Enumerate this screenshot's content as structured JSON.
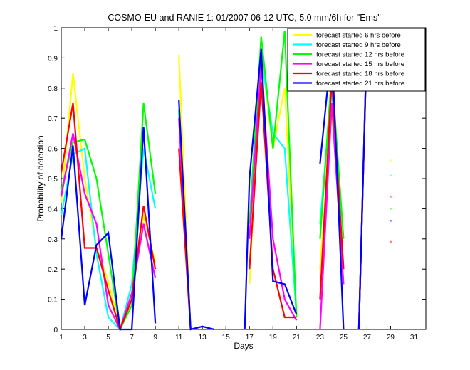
{
  "chart_data": {
    "type": "line",
    "title": "COSMO-EU and RANIE 1: 01/2007 06-12 UTC, 5.0 mm/6h for \"Ems\"",
    "xlabel": "Days",
    "ylabel": "Probability of detection",
    "xlim": [
      1,
      32
    ],
    "ylim": [
      0,
      1
    ],
    "xticks": [
      1,
      3,
      5,
      7,
      9,
      11,
      13,
      15,
      17,
      19,
      21,
      23,
      25,
      27,
      29,
      31
    ],
    "yticks": [
      0,
      0.1,
      0.2,
      0.3,
      0.4,
      0.5,
      0.6,
      0.7,
      0.8,
      0.9,
      1
    ],
    "ytick_labels": [
      "0",
      "0.1",
      "0.2",
      "0.3",
      "0.4",
      "0.5",
      "0.6",
      "0.7",
      "0.8",
      "0.9",
      "1"
    ],
    "legend_position": "top-right",
    "grid": false,
    "series": [
      {
        "name": "forecast started 6 hrs before",
        "color": "#ffff00",
        "segments": [
          [
            [
              1,
              0.42
            ],
            [
              2,
              0.85
            ],
            [
              3,
              0.5
            ],
            [
              4,
              0.27
            ],
            [
              5,
              0.16
            ],
            [
              6,
              0.0
            ],
            [
              7,
              0.1
            ],
            [
              8,
              0.38
            ],
            [
              9,
              0.22
            ]
          ],
          [
            [
              11,
              0.91
            ],
            [
              12,
              0.0
            ]
          ],
          [
            [
              17,
              0.15
            ],
            [
              18,
              0.92
            ],
            [
              19,
              0.6
            ],
            [
              20,
              0.8
            ],
            [
              21,
              0.05
            ]
          ],
          [
            [
              23,
              0.2
            ],
            [
              24,
              0.72
            ],
            [
              25,
              0.2
            ]
          ],
          [
            [
              26.3,
              0.0
            ],
            [
              27,
              1.0
            ]
          ]
        ],
        "markers": [
          [
            29,
            0.56
          ]
        ]
      },
      {
        "name": "forecast started 9 hrs before",
        "color": "#00ffff",
        "segments": [
          [
            [
              1,
              0.38
            ],
            [
              2,
              0.58
            ],
            [
              3,
              0.6
            ],
            [
              4,
              0.25
            ],
            [
              5,
              0.04
            ],
            [
              6,
              0.0
            ],
            [
              7,
              0.15
            ],
            [
              8,
              0.6
            ],
            [
              9,
              0.4
            ]
          ],
          [
            [
              11,
              0.72
            ],
            [
              12,
              0.0
            ]
          ],
          [
            [
              17,
              0.3
            ],
            [
              18,
              0.9
            ],
            [
              19,
              0.65
            ],
            [
              20,
              0.6
            ],
            [
              21,
              0.05
            ]
          ],
          [
            [
              23,
              0.35
            ],
            [
              24,
              0.8
            ],
            [
              25,
              0.2
            ]
          ],
          [
            [
              26.3,
              0.0
            ],
            [
              27,
              0.98
            ]
          ]
        ],
        "markers": [
          [
            29,
            0.51
          ]
        ]
      },
      {
        "name": "forecast started 12 hrs before",
        "color": "#00ff00",
        "segments": [
          [
            [
              1,
              0.46
            ],
            [
              2,
              0.62
            ],
            [
              3,
              0.63
            ],
            [
              4,
              0.5
            ],
            [
              5,
              0.25
            ],
            [
              6,
              0.0
            ],
            [
              7,
              0.08
            ],
            [
              8,
              0.75
            ],
            [
              9,
              0.45
            ]
          ],
          [
            [
              11,
              0.73
            ],
            [
              12,
              0.0
            ]
          ],
          [
            [
              17,
              0.35
            ],
            [
              18,
              0.97
            ],
            [
              19,
              0.6
            ],
            [
              20,
              0.99
            ],
            [
              21,
              0.04
            ]
          ],
          [
            [
              23,
              0.3
            ],
            [
              24,
              0.85
            ],
            [
              25,
              0.3
            ]
          ],
          [
            [
              26.3,
              0.0
            ],
            [
              27,
              0.99
            ]
          ]
        ],
        "markers": [
          [
            29,
            0.4
          ]
        ]
      },
      {
        "name": "forecast started 15 hrs before",
        "color": "#ff00ff",
        "segments": [
          [
            [
              1,
              0.44
            ],
            [
              2,
              0.65
            ],
            [
              3,
              0.45
            ],
            [
              4,
              0.35
            ],
            [
              5,
              0.08
            ],
            [
              6,
              0.0
            ],
            [
              7,
              0.12
            ],
            [
              8,
              0.35
            ],
            [
              9,
              0.17
            ]
          ],
          [
            [
              11,
              0.7
            ],
            [
              12,
              0.0
            ]
          ],
          [
            [
              17,
              0.3
            ],
            [
              18,
              0.88
            ],
            [
              19,
              0.3
            ],
            [
              20,
              0.1
            ],
            [
              21,
              0.03
            ]
          ],
          [
            [
              23,
              0.0
            ],
            [
              24,
              0.75
            ],
            [
              25,
              0.15
            ]
          ],
          [
            [
              26.3,
              0.0
            ],
            [
              27,
              0.98
            ]
          ]
        ],
        "markers": [
          [
            29,
            0.44
          ]
        ]
      },
      {
        "name": "forecast started 18 hrs before",
        "color": "#ff0000",
        "segments": [
          [
            [
              1,
              0.52
            ],
            [
              2,
              0.75
            ],
            [
              3,
              0.27
            ],
            [
              4,
              0.27
            ],
            [
              5,
              0.13
            ],
            [
              6,
              0.0
            ],
            [
              7,
              0.1
            ],
            [
              8,
              0.41
            ],
            [
              9,
              0.2
            ]
          ],
          [
            [
              11,
              0.6
            ],
            [
              12,
              0.0
            ]
          ],
          [
            [
              17,
              0.2
            ],
            [
              18,
              0.82
            ],
            [
              19,
              0.2
            ],
            [
              20,
              0.04
            ],
            [
              21,
              0.04
            ]
          ],
          [
            [
              23,
              0.1
            ],
            [
              24,
              0.83
            ],
            [
              25,
              0.2
            ]
          ],
          [
            [
              26.3,
              0.0
            ],
            [
              27,
              0.98
            ]
          ]
        ],
        "markers": [
          [
            29,
            0.29
          ]
        ]
      },
      {
        "name": "forecast started 21 hrs before",
        "color": "#0000ff",
        "segments": [
          [
            [
              1,
              0.3
            ],
            [
              2,
              0.61
            ],
            [
              3,
              0.08
            ],
            [
              4,
              0.28
            ],
            [
              5,
              0.32
            ],
            [
              6,
              0.0
            ],
            [
              7,
              0.0
            ],
            [
              8,
              0.67
            ],
            [
              9,
              0.02
            ]
          ],
          [
            [
              11,
              0.76
            ],
            [
              12,
              0.0
            ],
            [
              13,
              0.01
            ],
            [
              14,
              0.0
            ]
          ],
          [
            [
              16.6,
              0.0
            ],
            [
              17,
              0.5
            ],
            [
              18,
              0.93
            ],
            [
              19,
              0.16
            ],
            [
              20,
              0.15
            ],
            [
              21,
              0.05
            ]
          ],
          [
            [
              23,
              0.55
            ],
            [
              24,
              0.94
            ],
            [
              25,
              0.0
            ]
          ],
          [
            [
              26.3,
              0.0
            ],
            [
              27,
              0.97
            ]
          ]
        ],
        "markers": [
          [
            29,
            0.36
          ]
        ]
      }
    ]
  }
}
